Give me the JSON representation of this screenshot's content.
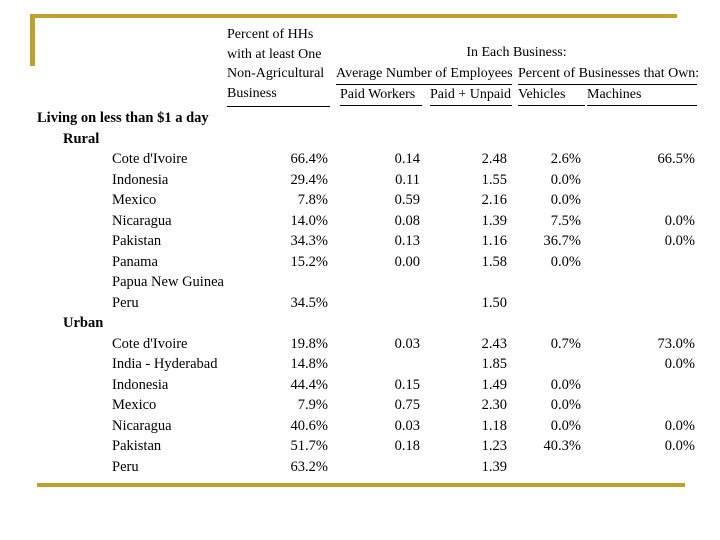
{
  "slide": {
    "accent_color": "#BDA32E",
    "background_color": "#ffffff"
  },
  "table": {
    "header": {
      "col1_lines": [
        "Percent of HHs",
        "with at least One",
        "Non-Agricultural",
        "Business"
      ],
      "group_top": "In Each Business:",
      "group_employees": "Average Number of Employees",
      "group_own": "Percent of Businesses that Own:",
      "subheaders": [
        "Paid Workers",
        "Paid + Unpaid",
        "Vehicles",
        "Machines"
      ]
    },
    "section_title": "Living on less than $1 a day",
    "sections": [
      {
        "label": "Rural",
        "rows": [
          {
            "country": "Cote d'Ivoire",
            "pct_hh": "66.4%",
            "paid_workers": "0.14",
            "paid_unpaid": "2.48",
            "vehicles": "2.6%",
            "machines": "66.5%"
          },
          {
            "country": "Indonesia",
            "pct_hh": "29.4%",
            "paid_workers": "0.11",
            "paid_unpaid": "1.55",
            "vehicles": "0.0%",
            "machines": ""
          },
          {
            "country": "Mexico",
            "pct_hh": "7.8%",
            "paid_workers": "0.59",
            "paid_unpaid": "2.16",
            "vehicles": "0.0%",
            "machines": ""
          },
          {
            "country": "Nicaragua",
            "pct_hh": "14.0%",
            "paid_workers": "0.08",
            "paid_unpaid": "1.39",
            "vehicles": "7.5%",
            "machines": "0.0%"
          },
          {
            "country": "Pakistan",
            "pct_hh": "34.3%",
            "paid_workers": "0.13",
            "paid_unpaid": "1.16",
            "vehicles": "36.7%",
            "machines": "0.0%"
          },
          {
            "country": "Panama",
            "pct_hh": "15.2%",
            "paid_workers": "0.00",
            "paid_unpaid": "1.58",
            "vehicles": "0.0%",
            "machines": ""
          },
          {
            "country": "Papua New Guinea",
            "pct_hh": "",
            "paid_workers": "",
            "paid_unpaid": "",
            "vehicles": "",
            "machines": ""
          },
          {
            "country": "Peru",
            "pct_hh": "34.5%",
            "paid_workers": "",
            "paid_unpaid": "1.50",
            "vehicles": "",
            "machines": ""
          }
        ]
      },
      {
        "label": "Urban",
        "rows": [
          {
            "country": "Cote d'Ivoire",
            "pct_hh": "19.8%",
            "paid_workers": "0.03",
            "paid_unpaid": "2.43",
            "vehicles": "0.7%",
            "machines": "73.0%"
          },
          {
            "country": "India - Hyderabad",
            "pct_hh": "14.8%",
            "paid_workers": "",
            "paid_unpaid": "1.85",
            "vehicles": "",
            "machines": "0.0%"
          },
          {
            "country": "Indonesia",
            "pct_hh": "44.4%",
            "paid_workers": "0.15",
            "paid_unpaid": "1.49",
            "vehicles": "0.0%",
            "machines": ""
          },
          {
            "country": "Mexico",
            "pct_hh": "7.9%",
            "paid_workers": "0.75",
            "paid_unpaid": "2.30",
            "vehicles": "0.0%",
            "machines": ""
          },
          {
            "country": "Nicaragua",
            "pct_hh": "40.6%",
            "paid_workers": "0.03",
            "paid_unpaid": "1.18",
            "vehicles": "0.0%",
            "machines": "0.0%"
          },
          {
            "country": "Pakistan",
            "pct_hh": "51.7%",
            "paid_workers": "0.18",
            "paid_unpaid": "1.23",
            "vehicles": "40.3%",
            "machines": "0.0%"
          },
          {
            "country": "Peru",
            "pct_hh": "63.2%",
            "paid_workers": "",
            "paid_unpaid": "1.39",
            "vehicles": "",
            "machines": ""
          }
        ]
      }
    ]
  }
}
